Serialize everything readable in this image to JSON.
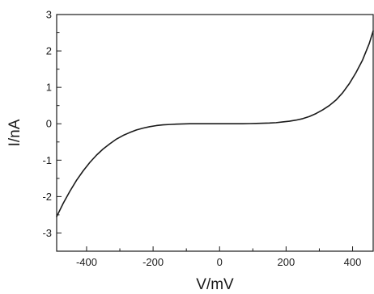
{
  "chart_data": {
    "type": "line",
    "xlabel": "V/mV",
    "ylabel": "I/nA",
    "xlim": [
      -490,
      462
    ],
    "ylim": [
      -3.5,
      3
    ],
    "x_ticks": [
      -400,
      -200,
      0,
      200,
      400
    ],
    "y_ticks": [
      3,
      2,
      1,
      0,
      -1,
      -2,
      -3
    ],
    "x_minor_ticks": [
      -300,
      -100,
      100,
      300
    ],
    "y_minor_ticks": [
      2.5,
      1.5,
      0.5,
      -0.5,
      -1.5,
      -2.5
    ],
    "grid": false,
    "legend": "none",
    "line_color": "#1a1a1a",
    "series": [
      {
        "x": [
          -490,
          -470,
          -450,
          -430,
          -410,
          -390,
          -370,
          -350,
          -330,
          -310,
          -290,
          -270,
          -250,
          -230,
          -210,
          -190,
          -170,
          -150,
          -130,
          -110,
          -90,
          -70,
          -50,
          -30,
          -10,
          10,
          30,
          50,
          70,
          90,
          110,
          130,
          150,
          170,
          190,
          210,
          230,
          250,
          270,
          290,
          310,
          330,
          350,
          370,
          390,
          410,
          430,
          450,
          462
        ],
        "y": [
          -2.55,
          -2.18,
          -1.85,
          -1.55,
          -1.29,
          -1.06,
          -0.86,
          -0.69,
          -0.55,
          -0.42,
          -0.32,
          -0.24,
          -0.17,
          -0.12,
          -0.08,
          -0.05,
          -0.03,
          -0.02,
          -0.01,
          -0.005,
          0.0,
          0.0,
          0.0,
          0.0,
          0.0,
          0.0,
          0.0,
          0.0,
          0.0,
          0.005,
          0.01,
          0.015,
          0.02,
          0.03,
          0.05,
          0.07,
          0.1,
          0.14,
          0.2,
          0.28,
          0.38,
          0.5,
          0.65,
          0.85,
          1.1,
          1.4,
          1.75,
          2.2,
          2.55
        ]
      }
    ]
  }
}
